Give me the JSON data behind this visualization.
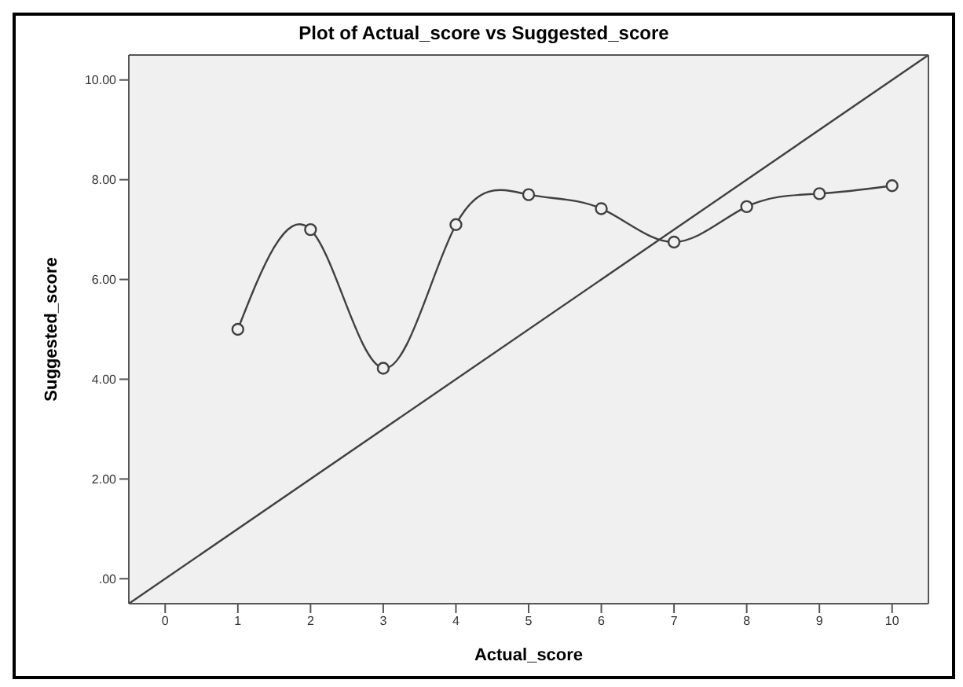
{
  "chart_data": {
    "type": "line",
    "title": "Plot of Actual_score vs Suggested_score",
    "xlabel": "Actual_score",
    "ylabel": "Suggested_score",
    "xlim": [
      -0.5,
      10.5
    ],
    "ylim": [
      -0.5,
      10.5
    ],
    "xticks": [
      0,
      1,
      2,
      3,
      4,
      5,
      6,
      7,
      8,
      9,
      10
    ],
    "yticks": [
      {
        "value": 0,
        "label": ".00"
      },
      {
        "value": 2,
        "label": "2.00"
      },
      {
        "value": 4,
        "label": "4.00"
      },
      {
        "value": 6,
        "label": "6.00"
      },
      {
        "value": 8,
        "label": "8.00"
      },
      {
        "value": 10,
        "label": "10.00"
      }
    ],
    "grid": false,
    "series": [
      {
        "type": "line",
        "color": "#404040",
        "marker": "circle",
        "x": [
          1,
          2,
          3,
          4,
          5,
          6,
          7,
          8,
          9,
          10
        ],
        "values": [
          5.0,
          7.0,
          4.22,
          7.1,
          7.7,
          7.42,
          6.75,
          7.46,
          7.72,
          7.88
        ]
      },
      {
        "type": "line",
        "color": "#404040",
        "marker": "none",
        "x": [
          -0.5,
          10.5
        ],
        "values": [
          -0.5,
          10.5
        ]
      }
    ]
  }
}
